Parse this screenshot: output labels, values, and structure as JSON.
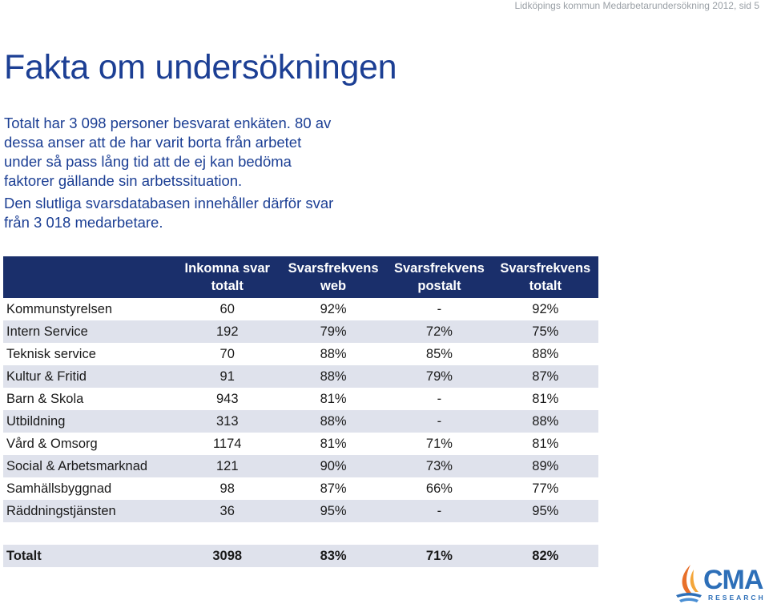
{
  "header": "Lidköpings kommun Medarbetarundersökning 2012, sid 5",
  "title": "Fakta om undersökningen",
  "intro": {
    "p1": "Totalt har 3 098 personer besvarat enkäten. 80 av dessa anser att de har varit borta från arbetet under så pass lång tid att de ej kan bedöma faktorer gällande sin arbetssituation.",
    "p2": "Den slutliga svarsdatabasen innehåller därför svar från 3 018 medarbetare."
  },
  "table": {
    "headers": [
      "",
      "Inkomna svar totalt",
      "Svarsfrekvens web",
      "Svarsfrekvens postalt",
      "Svarsfrekvens totalt"
    ],
    "rows": [
      {
        "name": "Kommunstyrelsen",
        "total": "60",
        "web": "92%",
        "post": "-",
        "overall": "92%"
      },
      {
        "name": "Intern Service",
        "total": "192",
        "web": "79%",
        "post": "72%",
        "overall": "75%"
      },
      {
        "name": "Teknisk service",
        "total": "70",
        "web": "88%",
        "post": "85%",
        "overall": "88%"
      },
      {
        "name": "Kultur & Fritid",
        "total": "91",
        "web": "88%",
        "post": "79%",
        "overall": "87%"
      },
      {
        "name": "Barn & Skola",
        "total": "943",
        "web": "81%",
        "post": "-",
        "overall": "81%"
      },
      {
        "name": "Utbildning",
        "total": "313",
        "web": "88%",
        "post": "-",
        "overall": "88%"
      },
      {
        "name": "Vård & Omsorg",
        "total": "1174",
        "web": "81%",
        "post": "71%",
        "overall": "81%"
      },
      {
        "name": "Social & Arbetsmarknad",
        "total": "121",
        "web": "90%",
        "post": "73%",
        "overall": "89%"
      },
      {
        "name": "Samhällsbyggnad",
        "total": "98",
        "web": "87%",
        "post": "66%",
        "overall": "77%"
      },
      {
        "name": "Räddningstjänsten",
        "total": "36",
        "web": "95%",
        "post": "-",
        "overall": "95%"
      }
    ],
    "total": {
      "name": "Totalt",
      "total": "3098",
      "web": "83%",
      "post": "71%",
      "overall": "82%"
    }
  },
  "logo": {
    "text": "CMA",
    "sub": "RESEARCH"
  },
  "colors": {
    "title": "#1c3f94",
    "header_bg": "#1a2f6b",
    "row_alt": "#dfe2ec",
    "logo": "#2d6fb8"
  }
}
